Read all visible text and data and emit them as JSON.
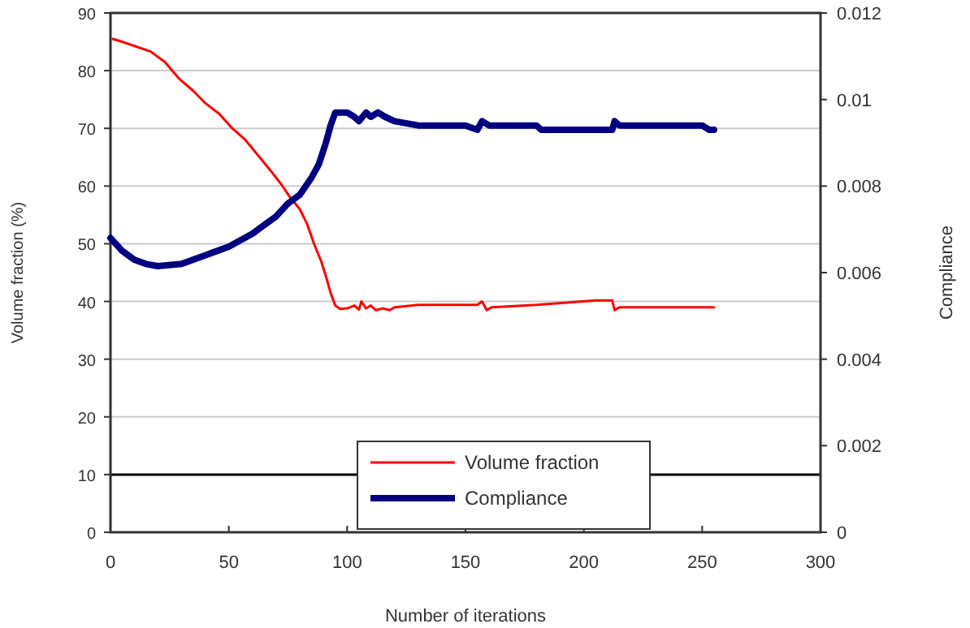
{
  "chart_data": {
    "type": "line",
    "xlabel": "Number of iterations",
    "ylabel": "Volume fraction (%)",
    "y2label": "Compliance",
    "xlim": [
      0,
      300
    ],
    "xticks": [
      0,
      50,
      100,
      150,
      200,
      250,
      300
    ],
    "ylim": [
      0,
      90
    ],
    "yticks": [
      0,
      10,
      20,
      30,
      40,
      50,
      60,
      70,
      80,
      90
    ],
    "y2lim": [
      0,
      0.012
    ],
    "y2ticks": [
      0,
      0.002,
      0.004,
      0.006,
      0.008,
      0.01,
      0.012
    ],
    "grid": "y",
    "legend": "bottom",
    "marker": "none",
    "line_style": "solid",
    "ref_lines": [
      {
        "axis": "y",
        "value": 10,
        "color": "#000000"
      }
    ],
    "series": [
      {
        "name": "Volume fraction",
        "color": "#ff0000",
        "x": [
          1,
          5,
          10,
          17,
          23,
          29,
          35,
          40,
          46,
          51,
          57,
          63,
          68,
          72,
          76,
          80,
          83,
          86,
          89,
          91,
          93,
          95,
          97,
          100,
          103,
          105,
          106,
          108,
          110,
          112,
          115,
          118,
          120,
          130,
          155,
          157,
          159,
          161,
          180,
          205,
          212,
          213,
          215,
          255
        ],
        "values": [
          85.5,
          85,
          84.3,
          83.3,
          81.5,
          78.6,
          76.5,
          74.4,
          72.5,
          70.2,
          68,
          65,
          62.5,
          60.4,
          58,
          56,
          53.5,
          50,
          47,
          44.4,
          41.5,
          39.3,
          38.7,
          38.8,
          39.3,
          38.6,
          40,
          38.8,
          39.3,
          38.5,
          38.8,
          38.5,
          39,
          39.4,
          39.4,
          40,
          38.5,
          39,
          39.4,
          40.2,
          40.2,
          38.5,
          39,
          39
        ]
      },
      {
        "name": "Compliance",
        "color": "#000080",
        "axis": "y2",
        "x": [
          0,
          5,
          10,
          15,
          20,
          30,
          40,
          50,
          60,
          65,
          70,
          75,
          80,
          85,
          88,
          91,
          93,
          95,
          98,
          100,
          103,
          105,
          108,
          110,
          113,
          116,
          120,
          130,
          150,
          155,
          157,
          160,
          180,
          182,
          212,
          213,
          215,
          250,
          253,
          255
        ],
        "values": [
          0.0068,
          0.0065,
          0.0063,
          0.0062,
          0.00615,
          0.0062,
          0.0064,
          0.0066,
          0.0069,
          0.0071,
          0.0073,
          0.0076,
          0.0078,
          0.0082,
          0.0085,
          0.009,
          0.0094,
          0.0097,
          0.0097,
          0.0097,
          0.0096,
          0.0095,
          0.0097,
          0.0096,
          0.0097,
          0.0096,
          0.0095,
          0.0094,
          0.0094,
          0.0093,
          0.0095,
          0.0094,
          0.0094,
          0.0093,
          0.0093,
          0.0095,
          0.0094,
          0.0094,
          0.0093,
          0.0093
        ]
      }
    ]
  }
}
